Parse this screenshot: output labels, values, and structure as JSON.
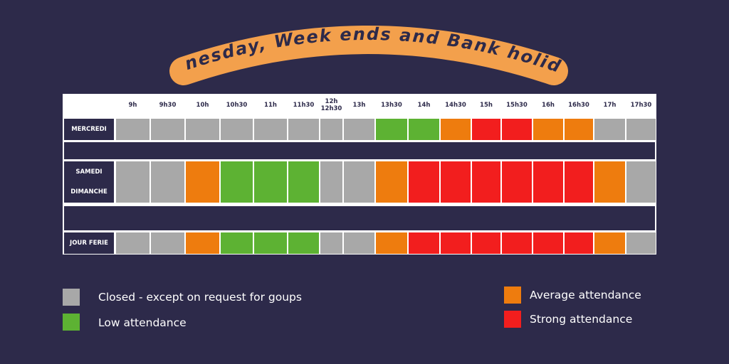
{
  "banner": {
    "title": "Wednesday, Week ends and Bank holidays"
  },
  "schedule": {
    "columns": [
      "9h",
      "9h30",
      "10h",
      "10h30",
      "11h",
      "11h30",
      "12h\n12h30",
      "13h",
      "13h30",
      "14h",
      "14h30",
      "15h",
      "15h30",
      "16h",
      "16h30",
      "17h",
      "17h30"
    ],
    "rows": [
      {
        "label": "MERCREDI",
        "cells": [
          "closed",
          "closed",
          "closed",
          "closed",
          "closed",
          "closed",
          "closed",
          "closed",
          "low",
          "low",
          "average",
          "strong",
          "strong",
          "average",
          "average",
          "closed",
          "closed"
        ]
      },
      {
        "label": "SAMEDI",
        "cells": [
          "closed",
          "closed",
          "average",
          "low",
          "low",
          "low",
          "closed",
          "closed",
          "average",
          "strong",
          "strong",
          "strong",
          "strong",
          "strong",
          "strong",
          "average",
          "closed"
        ]
      },
      {
        "label": "DIMANCHE",
        "cells": [
          "closed",
          "closed",
          "average",
          "low",
          "low",
          "low",
          "closed",
          "closed",
          "average",
          "strong",
          "strong",
          "strong",
          "strong",
          "strong",
          "strong",
          "average",
          "closed"
        ]
      },
      {
        "label": "JOUR FERIE",
        "cells": [
          "closed",
          "closed",
          "average",
          "low",
          "low",
          "low",
          "closed",
          "closed",
          "average",
          "strong",
          "strong",
          "strong",
          "strong",
          "strong",
          "strong",
          "average",
          "closed"
        ]
      }
    ]
  },
  "legend": {
    "closed": {
      "label": "Closed - except on request  for goups",
      "color": "#a8a8a8"
    },
    "low": {
      "label": "Low attendance",
      "color": "#5db233"
    },
    "average": {
      "label": "Average attendance",
      "color": "#ee7c0e"
    },
    "strong": {
      "label": "Strong attendance",
      "color": "#f21e1e"
    }
  }
}
